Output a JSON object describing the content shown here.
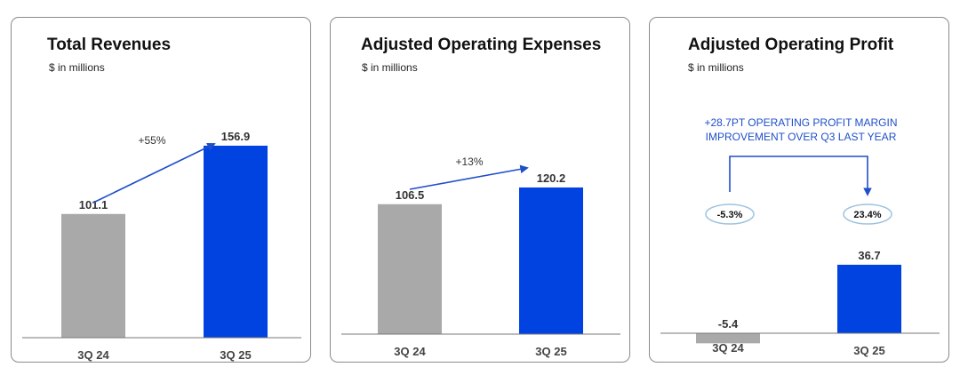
{
  "chart_data": [
    {
      "type": "bar",
      "title": "Total Revenues",
      "subtitle": "$ in millions",
      "categories": [
        "3Q 24",
        "3Q 25"
      ],
      "values": [
        101.1,
        156.9
      ],
      "value_labels": [
        "101.1",
        "156.9"
      ],
      "colors": [
        "#a9a9a9",
        "#0043e0"
      ],
      "annotation": "+55%",
      "xlabel": "",
      "ylabel": "",
      "grid": false
    },
    {
      "type": "bar",
      "title": "Adjusted Operating Expenses",
      "subtitle": "$ in millions",
      "categories": [
        "3Q 24",
        "3Q 25"
      ],
      "values": [
        106.5,
        120.2
      ],
      "value_labels": [
        "106.5",
        "120.2"
      ],
      "colors": [
        "#a9a9a9",
        "#0043e0"
      ],
      "annotation": "+13%",
      "xlabel": "",
      "ylabel": "",
      "grid": false
    },
    {
      "type": "bar",
      "title": "Adjusted Operating Profit",
      "subtitle": "$ in millions",
      "categories": [
        "3Q 24",
        "3Q 25"
      ],
      "values": [
        -5.4,
        36.7
      ],
      "value_labels": [
        "-5.4",
        "36.7"
      ],
      "colors": [
        "#a9a9a9",
        "#0043e0"
      ],
      "margins": [
        "-5.3%",
        "23.4%"
      ],
      "annotation_lines": [
        "+28.7PT OPERATING PROFIT MARGIN",
        "IMPROVEMENT OVER Q3 LAST YEAR"
      ],
      "xlabel": "",
      "ylabel": "",
      "grid": false
    }
  ],
  "accent_color": "#1f4fc9"
}
